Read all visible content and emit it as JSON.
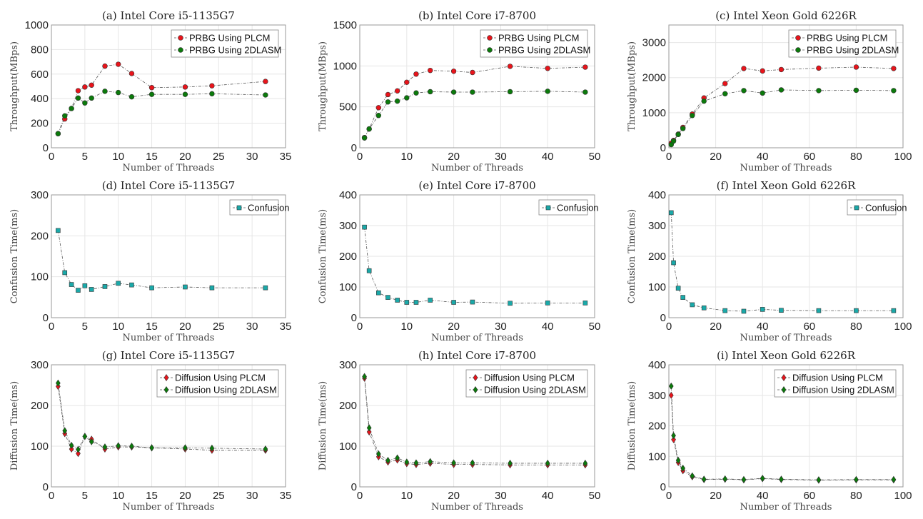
{
  "chart_data": [
    {
      "type": "line",
      "title": "(a) Intel Core i5-1135G7",
      "xlabel": "Number of Threads",
      "ylabel": "Throughput(MBps)",
      "xlim": [
        0,
        35
      ],
      "ylim": [
        0,
        1000
      ],
      "xticks": [
        0,
        5,
        10,
        15,
        20,
        25,
        30,
        35
      ],
      "yticks": [
        0,
        200,
        400,
        600,
        800,
        1000
      ],
      "grid": true,
      "legend": "top-right",
      "x": [
        1,
        2,
        3,
        4,
        5,
        6,
        8,
        10,
        12,
        15,
        20,
        24,
        32
      ],
      "series": [
        {
          "name": "PRBG Using PLCM",
          "color": "#e8141b",
          "marker": "circle",
          "values": [
            115,
            235,
            320,
            465,
            495,
            510,
            665,
            680,
            605,
            490,
            495,
            505,
            540
          ]
        },
        {
          "name": "PRBG Using 2DLASM",
          "color": "#0b7a0b",
          "marker": "circle",
          "values": [
            115,
            260,
            320,
            405,
            365,
            405,
            460,
            450,
            415,
            435,
            435,
            440,
            430
          ]
        }
      ]
    },
    {
      "type": "line",
      "title": "(b) Intel Core i7-8700",
      "xlabel": "Number of Threads",
      "ylabel": "Throughput(MBps)",
      "xlim": [
        0,
        50
      ],
      "ylim": [
        0,
        1500
      ],
      "xticks": [
        0,
        10,
        20,
        30,
        40,
        50
      ],
      "yticks": [
        0,
        500,
        1000,
        1500
      ],
      "grid": true,
      "legend": "top-right",
      "x": [
        1,
        2,
        4,
        6,
        8,
        10,
        12,
        15,
        20,
        24,
        32,
        40,
        48
      ],
      "series": [
        {
          "name": "PRBG Using PLCM",
          "color": "#e8141b",
          "marker": "circle",
          "values": [
            125,
            230,
            490,
            650,
            695,
            800,
            900,
            945,
            935,
            920,
            995,
            970,
            985
          ]
        },
        {
          "name": "PRBG Using 2DLASM",
          "color": "#0b7a0b",
          "marker": "circle",
          "values": [
            120,
            230,
            395,
            560,
            570,
            610,
            670,
            685,
            680,
            680,
            685,
            690,
            680
          ]
        }
      ]
    },
    {
      "type": "line",
      "title": "(c) Intel Xeon Gold 6226R",
      "xlabel": "Number of Threads",
      "ylabel": "Throughput(MBps)",
      "xlim": [
        0,
        100
      ],
      "ylim": [
        0,
        3500
      ],
      "xticks": [
        0,
        20,
        40,
        60,
        80,
        100
      ],
      "yticks": [
        0,
        1000,
        2000,
        3000
      ],
      "grid": true,
      "legend": "top-right",
      "x": [
        1,
        2,
        4,
        6,
        10,
        15,
        24,
        32,
        40,
        48,
        64,
        80,
        96
      ],
      "series": [
        {
          "name": "PRBG Using PLCM",
          "color": "#e8141b",
          "marker": "circle",
          "values": [
            130,
            210,
            390,
            580,
            960,
            1420,
            1830,
            2260,
            2190,
            2230,
            2270,
            2300,
            2260
          ]
        },
        {
          "name": "PRBG Using 2DLASM",
          "color": "#0b7a0b",
          "marker": "circle",
          "values": [
            90,
            190,
            380,
            550,
            920,
            1330,
            1540,
            1630,
            1560,
            1650,
            1630,
            1640,
            1630
          ]
        }
      ]
    },
    {
      "type": "line",
      "title": "(d) Intel Core i5-1135G7",
      "xlabel": "Number of Threads",
      "ylabel": "Confusion Time(ms)",
      "xlim": [
        0,
        35
      ],
      "ylim": [
        0,
        300
      ],
      "xticks": [
        0,
        5,
        10,
        15,
        20,
        25,
        30,
        35
      ],
      "yticks": [
        0,
        100,
        200,
        300
      ],
      "grid": true,
      "legend": "top-right",
      "x": [
        1,
        2,
        3,
        4,
        5,
        6,
        8,
        10,
        12,
        15,
        20,
        24,
        32
      ],
      "series": [
        {
          "name": "Confusion",
          "color": "#1aa9a9",
          "marker": "square",
          "values": [
            213,
            110,
            81,
            67,
            78,
            69,
            76,
            84,
            80,
            73,
            75,
            73,
            73
          ]
        }
      ]
    },
    {
      "type": "line",
      "title": "(e) Intel Core i7-8700",
      "xlabel": "Number of Threads",
      "ylabel": "Confusion Time(ms)",
      "xlim": [
        0,
        50
      ],
      "ylim": [
        0,
        400
      ],
      "xticks": [
        0,
        10,
        20,
        30,
        40,
        50
      ],
      "yticks": [
        0,
        100,
        200,
        300,
        400
      ],
      "grid": true,
      "legend": "top-right",
      "x": [
        1,
        2,
        4,
        6,
        8,
        10,
        12,
        15,
        20,
        24,
        32,
        40,
        48
      ],
      "series": [
        {
          "name": "Confusion",
          "color": "#1aa9a9",
          "marker": "square",
          "values": [
            295,
            153,
            81,
            66,
            57,
            50,
            50,
            57,
            50,
            51,
            47,
            48,
            48
          ]
        }
      ]
    },
    {
      "type": "line",
      "title": "(f) Intel Xeon Gold 6226R",
      "xlabel": "Number of Threads",
      "ylabel": "Confusion Time(ms)",
      "xlim": [
        0,
        100
      ],
      "ylim": [
        0,
        400
      ],
      "xticks": [
        0,
        20,
        40,
        60,
        80,
        100
      ],
      "yticks": [
        0,
        100,
        200,
        300,
        400
      ],
      "grid": true,
      "legend": "top-right",
      "x": [
        1,
        2,
        4,
        6,
        10,
        15,
        24,
        32,
        40,
        48,
        64,
        80,
        96
      ],
      "series": [
        {
          "name": "Confusion",
          "color": "#1aa9a9",
          "marker": "square",
          "values": [
            342,
            179,
            96,
            66,
            42,
            32,
            23,
            21,
            27,
            24,
            23,
            23,
            23
          ]
        }
      ]
    },
    {
      "type": "line",
      "title": "(g) Intel Core i5-1135G7",
      "xlabel": "Number of Threads",
      "ylabel": "Diffusion Time(ms)",
      "xlim": [
        0,
        35
      ],
      "ylim": [
        0,
        300
      ],
      "xticks": [
        0,
        5,
        10,
        15,
        20,
        25,
        30,
        35
      ],
      "yticks": [
        0,
        100,
        200,
        300
      ],
      "grid": true,
      "legend": "top-right",
      "x": [
        1,
        2,
        3,
        4,
        5,
        6,
        8,
        10,
        12,
        15,
        20,
        24,
        32
      ],
      "series": [
        {
          "name": "Diffusion Using PLCM",
          "color": "#e8141b",
          "marker": "diamond",
          "values": [
            247,
            131,
            93,
            82,
            124,
            117,
            93,
            98,
            98,
            96,
            93,
            90,
            90
          ]
        },
        {
          "name": "Diffusion Using 2DLASM",
          "color": "#0b7a0b",
          "marker": "diamond",
          "values": [
            255,
            138,
            102,
            92,
            124,
            111,
            98,
            101,
            100,
            96,
            96,
            95,
            93
          ]
        }
      ]
    },
    {
      "type": "line",
      "title": "(h) Intel Core i7-8700",
      "xlabel": "Number of Threads",
      "ylabel": "Diffusion Time(ms)",
      "xlim": [
        0,
        50
      ],
      "ylim": [
        0,
        300
      ],
      "xticks": [
        0,
        10,
        20,
        30,
        40,
        50
      ],
      "yticks": [
        0,
        100,
        200,
        300
      ],
      "grid": true,
      "legend": "top-right",
      "x": [
        1,
        2,
        4,
        6,
        8,
        10,
        12,
        15,
        20,
        24,
        32,
        40,
        48
      ],
      "series": [
        {
          "name": "Diffusion Using PLCM",
          "color": "#e8141b",
          "marker": "diamond",
          "values": [
            267,
            135,
            74,
            61,
            66,
            57,
            55,
            58,
            55,
            55,
            54,
            54,
            54
          ]
        },
        {
          "name": "Diffusion Using 2DLASM",
          "color": "#0b7a0b",
          "marker": "diamond",
          "values": [
            271,
            145,
            81,
            65,
            71,
            61,
            59,
            62,
            59,
            59,
            58,
            58,
            58
          ]
        }
      ]
    },
    {
      "type": "line",
      "title": "(i) Intel Xeon Gold 6226R",
      "xlabel": "Number of Threads",
      "ylabel": "Diffusion Time(ms)",
      "xlim": [
        0,
        100
      ],
      "ylim": [
        0,
        400
      ],
      "xticks": [
        0,
        20,
        40,
        60,
        80,
        100
      ],
      "yticks": [
        0,
        100,
        200,
        300,
        400
      ],
      "grid": true,
      "legend": "top-right",
      "x": [
        1,
        2,
        4,
        6,
        10,
        15,
        24,
        32,
        40,
        48,
        64,
        80,
        96
      ],
      "series": [
        {
          "name": "Diffusion Using PLCM",
          "color": "#e8141b",
          "marker": "diamond",
          "values": [
            300,
            155,
            80,
            53,
            33,
            24,
            25,
            23,
            27,
            24,
            22,
            23,
            23
          ]
        },
        {
          "name": "Diffusion Using 2DLASM",
          "color": "#0b7a0b",
          "marker": "diamond",
          "values": [
            330,
            168,
            87,
            61,
            36,
            25,
            26,
            24,
            28,
            25,
            23,
            24,
            24
          ]
        }
      ]
    }
  ]
}
